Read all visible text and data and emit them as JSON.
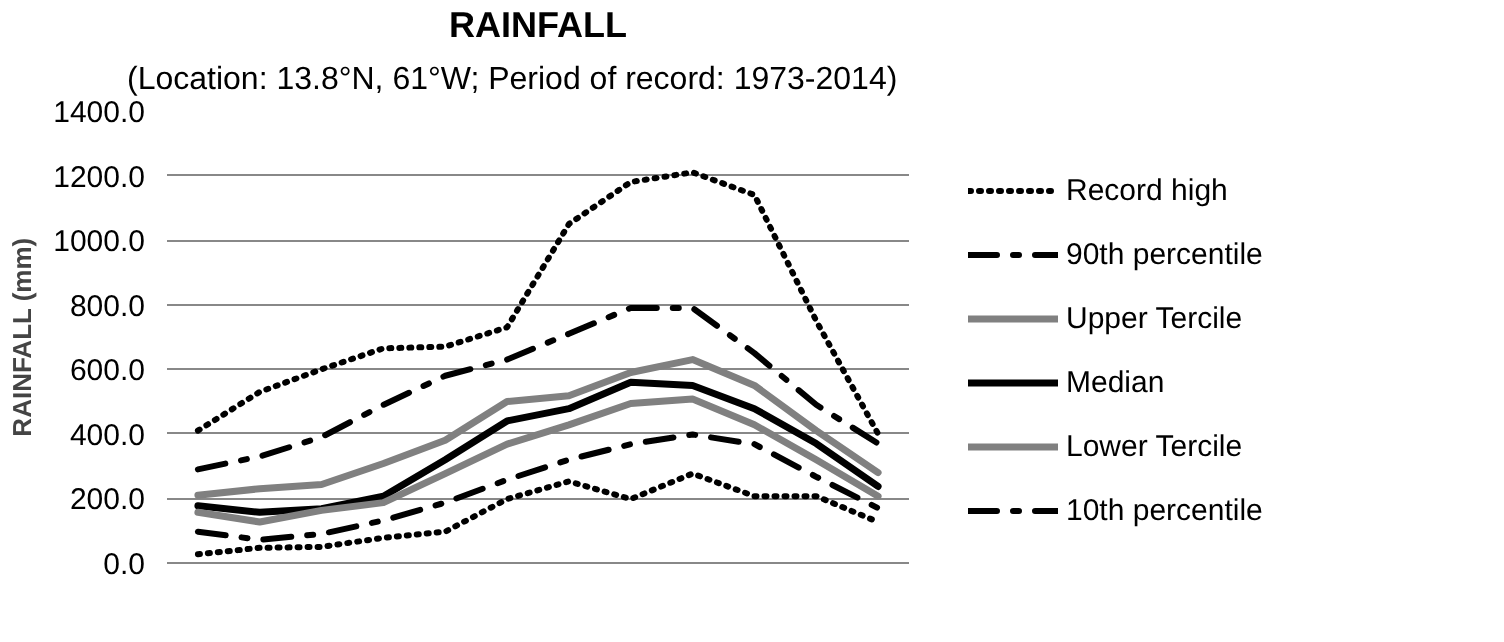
{
  "chart_data": {
    "type": "line",
    "title": "RAINFALL",
    "subtitle": "(Location: 13.8°N, 61°W; Period of record: 1973-2014)",
    "ylabel": "RAINFALL (mm)",
    "categories": [
      null,
      null,
      null,
      null,
      null,
      null,
      null,
      null,
      null,
      null,
      null,
      null
    ],
    "ylim": [
      0,
      1400
    ],
    "yticks": [
      {
        "value": 0,
        "label": "0.0"
      },
      {
        "value": 200,
        "label": "200.0"
      },
      {
        "value": 400,
        "label": "400.0"
      },
      {
        "value": 600,
        "label": "600.0"
      },
      {
        "value": 800,
        "label": "800.0"
      },
      {
        "value": 1000,
        "label": "1000.0"
      },
      {
        "value": 1200,
        "label": "1200.0"
      },
      {
        "value": 1400,
        "label": "1400.0"
      }
    ],
    "grid": "y",
    "legend": "right",
    "marker": "none",
    "series": [
      {
        "name": "Record high",
        "color": "#000000",
        "line_style": "dotted",
        "values": [
          410,
          530,
          600,
          665,
          670,
          730,
          1050,
          1180,
          1210,
          1140,
          750,
          400
        ]
      },
      {
        "name": "90th percentile",
        "color": "#000000",
        "line_style": "dashdot",
        "values": [
          290,
          330,
          390,
          490,
          580,
          630,
          710,
          790,
          790,
          650,
          490,
          370
        ]
      },
      {
        "name": "Upper Tercile",
        "color": "#808080",
        "line_style": "solid",
        "values": [
          210,
          230,
          243,
          308,
          380,
          500,
          518,
          590,
          630,
          550,
          410,
          280
        ]
      },
      {
        "name": "Median",
        "color": "#000000",
        "line_style": "solid",
        "values": [
          177,
          157,
          168,
          207,
          320,
          440,
          478,
          560,
          550,
          478,
          370,
          237
        ]
      },
      {
        "name": "Lower Tercile",
        "color": "#808080",
        "line_style": "solid",
        "values": [
          157,
          127,
          163,
          187,
          277,
          368,
          428,
          494,
          508,
          428,
          320,
          207
        ]
      },
      {
        "name": "10th percentile",
        "color": "#000000",
        "line_style": "dashdot",
        "values": [
          97,
          72,
          90,
          132,
          187,
          258,
          320,
          368,
          398,
          368,
          267,
          170
        ]
      },
      {
        "color": "#000000",
        "line_style": "dotted",
        "values": [
          27,
          47,
          50,
          78,
          97,
          198,
          253,
          198,
          277,
          207,
          207,
          127
        ]
      }
    ]
  }
}
